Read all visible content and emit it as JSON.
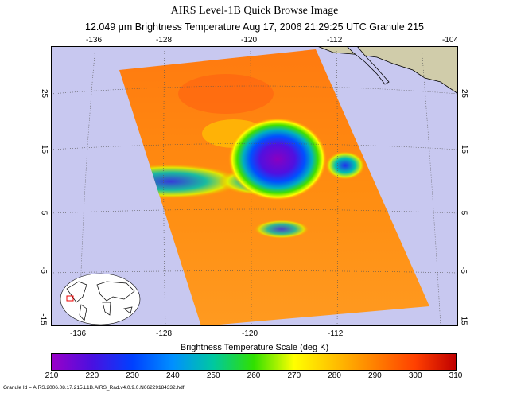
{
  "title": "AIRS Level-1B Quick Browse Image",
  "subtitle": "12.049 μm Brightness Temperature   Aug 17, 2006 21:29:25 UTC   Granule 215",
  "map": {
    "top_lon_ticks": [
      "-136",
      "-128",
      "-120",
      "-112",
      "-104"
    ],
    "bottom_lon_ticks": [
      "-136",
      "-128",
      "-120",
      "-112"
    ],
    "left_lat_ticks": [
      "25",
      "15",
      "5",
      "-5",
      "-15"
    ],
    "right_lat_ticks": [
      "25",
      "15",
      "5",
      "-5",
      "-15"
    ],
    "ocean_color": "#c8c8f0",
    "land_color": "#d0ccaa"
  },
  "colorbar": {
    "title": "Brightness Temperature Scale (deg K)",
    "labels": [
      "210",
      "220",
      "230",
      "240",
      "250",
      "260",
      "270",
      "280",
      "290",
      "300",
      "310"
    ],
    "range": [
      210,
      310
    ]
  },
  "granule_id": "Granule Id = AIRS.2006.08.17.215.L1B.AIRS_Rad.v4.0.9.0.N06229184332.hdf"
}
